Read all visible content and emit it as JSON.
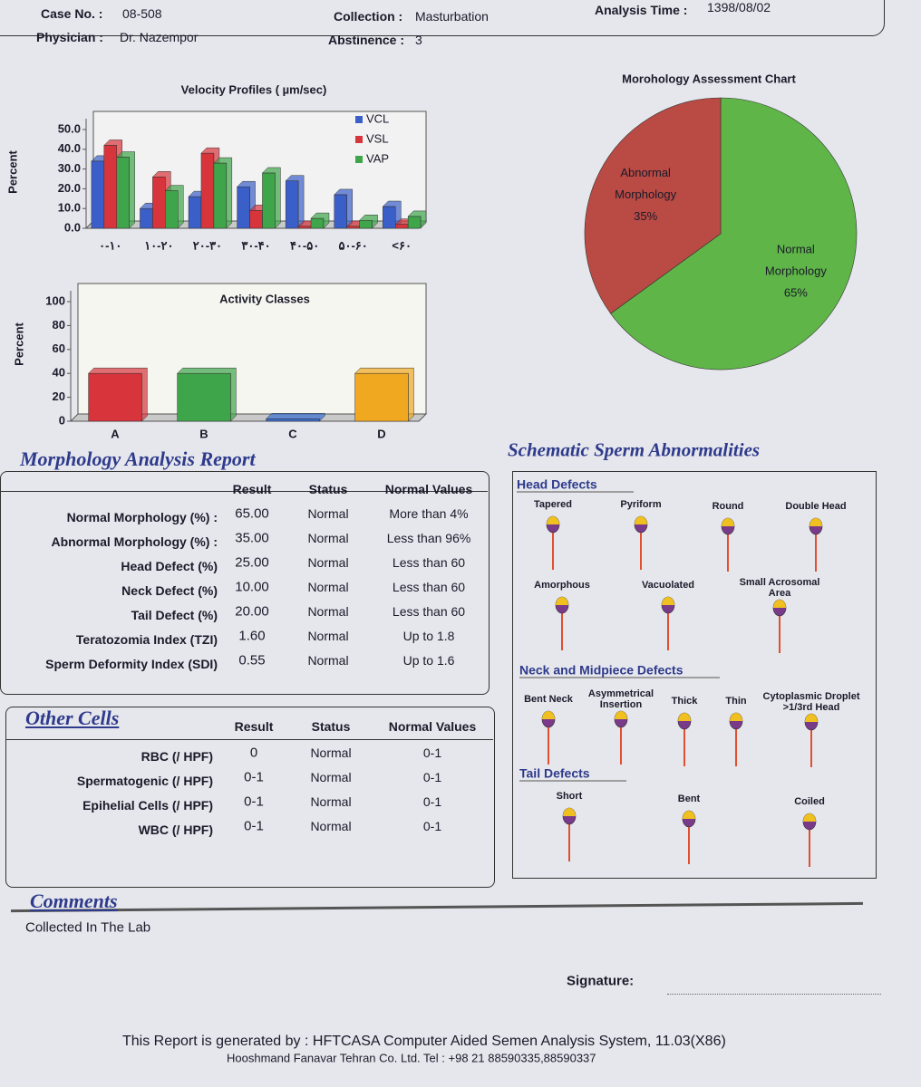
{
  "header": {
    "case_no_label": "Case No. :",
    "case_no": "08-508",
    "physician_label": "Physician :",
    "physician": "Dr. Nazempor",
    "collection_label": "Collection :",
    "collection": "Masturbation",
    "abstinence_label": "Abstinence :",
    "abstinence": "3",
    "analysis_time_label": "Analysis Time :",
    "analysis_time": "1398/08/02"
  },
  "chart_data": [
    {
      "type": "bar",
      "title": "Velocity Profiles ( µm/sec)",
      "y_label": "Percent",
      "categories": [
        "۰-۱۰",
        "۱۰-۲۰",
        "۲۰-۳۰",
        "۳۰-۴۰",
        "۴۰-۵۰",
        "۵۰-۶۰",
        "<۶۰"
      ],
      "series": [
        {
          "name": "VCL",
          "color": "#3b5fc8",
          "values": [
            34,
            10,
            16,
            21,
            24,
            17,
            11
          ]
        },
        {
          "name": "VSL",
          "color": "#d8343c",
          "values": [
            42,
            26,
            38,
            9,
            1,
            1,
            2
          ]
        },
        {
          "name": "VAP",
          "color": "#3fa54a",
          "values": [
            36,
            19,
            33,
            28,
            5,
            4,
            6
          ]
        }
      ],
      "ylim": [
        0,
        50
      ],
      "yticks": [
        {
          "value": 0,
          "label": "0.0"
        },
        {
          "value": 10,
          "label": "10.0"
        },
        {
          "value": 20,
          "label": "20.0"
        },
        {
          "value": 30,
          "label": "30.0"
        },
        {
          "value": 40,
          "label": "40.0"
        },
        {
          "value": 50,
          "label": "50.0"
        }
      ],
      "legend": "right"
    },
    {
      "type": "bar",
      "title": "Activity Classes",
      "y_label": "Percent",
      "categories": [
        "A",
        "B",
        "C",
        "D"
      ],
      "values": [
        40,
        40,
        2,
        40
      ],
      "colors": [
        "#d8343c",
        "#3fa54a",
        "#3b6fd0",
        "#f0a820"
      ],
      "ylim": [
        0,
        100
      ],
      "yticks": [
        0,
        20,
        40,
        60,
        80,
        100
      ]
    },
    {
      "type": "pie",
      "title": "Morohology Assessment Chart",
      "categories": [
        "Abnormal Morphology",
        "Normal Morphology"
      ],
      "values": [
        35,
        65
      ],
      "value_labels": [
        "35%",
        "65%"
      ],
      "colors": [
        "#b94a44",
        "#5fb548"
      ]
    }
  ],
  "morphology_report": {
    "title": "Morphology Analysis Report",
    "columns": [
      "Result",
      "Status",
      "Normal Values"
    ],
    "rows": [
      [
        "Normal Morphology (%) :",
        "65.00",
        "Normal",
        "More than 4%"
      ],
      [
        "Abnormal Morphology (%) :",
        "35.00",
        "Normal",
        "Less than 96%"
      ],
      [
        "Head Defect (%)",
        "25.00",
        "Normal",
        "Less than 60"
      ],
      [
        "Neck Defect (%)",
        "10.00",
        "Normal",
        "Less than 60"
      ],
      [
        "Tail Defect (%)",
        "20.00",
        "Normal",
        "Less than 60"
      ],
      [
        "Teratozomia Index (TZI)",
        "1.60",
        "Normal",
        "Up to 1.8"
      ],
      [
        "Sperm Deformity Index (SDI)",
        "0.55",
        "Normal",
        "Up to 1.6"
      ]
    ]
  },
  "other_cells": {
    "title": "Other Cells",
    "columns": [
      "Result",
      "Status",
      "Normal Values"
    ],
    "rows": [
      [
        "RBC (/ HPF)",
        "0",
        "Normal",
        "0-1"
      ],
      [
        "Spermatogenic (/ HPF)",
        "0-1",
        "Normal",
        "0-1"
      ],
      [
        "Epihelial Cells (/ HPF)",
        "0-1",
        "Normal",
        "0-1"
      ],
      [
        "WBC (/ HPF)",
        "0-1",
        "Normal",
        "0-1"
      ]
    ]
  },
  "schematic": {
    "title": "Schematic Sperm Abnormalities",
    "sections": [
      {
        "name": "Head Defects",
        "items": [
          "Tapered",
          "Pyriform",
          "Round",
          "Double Head",
          "Amorphous",
          "Vacuolated",
          "Small Acrosomal Area"
        ]
      },
      {
        "name": "Neck and Midpiece Defects",
        "items": [
          "Bent Neck",
          "Asymmetrical Insertion",
          "Thick",
          "Thin",
          "Cytoplasmic Droplet >1/3rd Head"
        ]
      },
      {
        "name": "Tail Defects",
        "items": [
          "Short",
          "Bent",
          "Coiled"
        ]
      }
    ]
  },
  "comments": {
    "title": "Comments",
    "text": "Collected In The Lab"
  },
  "signature_label": "Signature:",
  "footer": {
    "line1": "This Report is generated by : HFTCASA Computer Aided Semen Analysis System,  11.03(X86)",
    "line2": "Hooshmand Fanavar Tehran Co. Ltd.   Tel : +98 21 88590335,88590337"
  }
}
